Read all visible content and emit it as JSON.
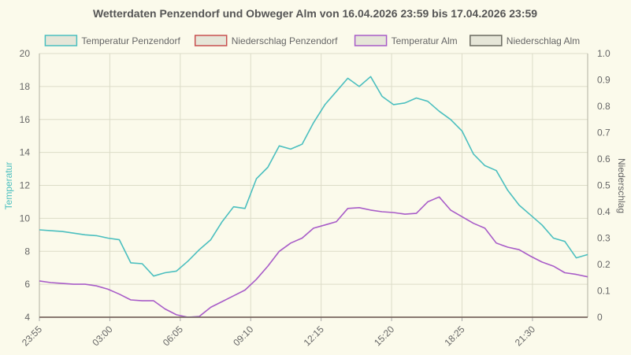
{
  "chart_data": {
    "type": "line",
    "title": "Wetterdaten Penzendorf und Obweger Alm von 16.04.2026 23:59 bis 17.04.2026 23:59",
    "ylabel_left": "Temperatur",
    "ylabel_right": "Niederschlag",
    "ylim_left": [
      4,
      20
    ],
    "ylim_right": [
      0,
      1
    ],
    "yticks_left": [
      "4",
      "6",
      "8",
      "10",
      "12",
      "14",
      "16",
      "18",
      "20"
    ],
    "yticks_right": [
      "0",
      "0.1",
      "0.2",
      "0.3",
      "0.4",
      "0.5",
      "0.6",
      "0.7",
      "0.8",
      "0.9",
      "1.0"
    ],
    "xlim_minutes": [
      0,
      1440
    ],
    "x_ticks": [
      {
        "label": "23:55",
        "minute": 0
      },
      {
        "label": "03:00",
        "minute": 185
      },
      {
        "label": "06:05",
        "minute": 370
      },
      {
        "label": "09:10",
        "minute": 555
      },
      {
        "label": "12:15",
        "minute": 740
      },
      {
        "label": "15:20",
        "minute": 925
      },
      {
        "label": "18:25",
        "minute": 1110
      },
      {
        "label": "21:30",
        "minute": 1295
      }
    ],
    "grid": true,
    "legend_position": "top",
    "series": [
      {
        "name": "Temperatur Penzendorf",
        "axis": "left",
        "color": "#4bbfbf",
        "points": [
          [
            0,
            9.3
          ],
          [
            30,
            9.25
          ],
          [
            60,
            9.2
          ],
          [
            90,
            9.1
          ],
          [
            120,
            9.0
          ],
          [
            150,
            8.95
          ],
          [
            180,
            8.8
          ],
          [
            210,
            8.7
          ],
          [
            240,
            7.3
          ],
          [
            270,
            7.25
          ],
          [
            300,
            6.5
          ],
          [
            330,
            6.7
          ],
          [
            360,
            6.8
          ],
          [
            390,
            7.4
          ],
          [
            420,
            8.1
          ],
          [
            450,
            8.7
          ],
          [
            480,
            9.8
          ],
          [
            510,
            10.7
          ],
          [
            540,
            10.6
          ],
          [
            570,
            12.4
          ],
          [
            600,
            13.1
          ],
          [
            630,
            14.4
          ],
          [
            660,
            14.2
          ],
          [
            690,
            14.5
          ],
          [
            720,
            15.8
          ],
          [
            750,
            16.9
          ],
          [
            780,
            17.7
          ],
          [
            810,
            18.5
          ],
          [
            840,
            18.0
          ],
          [
            870,
            18.6
          ],
          [
            900,
            17.4
          ],
          [
            930,
            16.9
          ],
          [
            960,
            17.0
          ],
          [
            990,
            17.3
          ],
          [
            1020,
            17.1
          ],
          [
            1050,
            16.5
          ],
          [
            1080,
            16.0
          ],
          [
            1110,
            15.3
          ],
          [
            1140,
            13.9
          ],
          [
            1170,
            13.2
          ],
          [
            1200,
            12.9
          ],
          [
            1230,
            11.7
          ],
          [
            1260,
            10.8
          ],
          [
            1290,
            10.2
          ],
          [
            1320,
            9.6
          ],
          [
            1350,
            8.8
          ],
          [
            1380,
            8.6
          ],
          [
            1410,
            7.6
          ],
          [
            1440,
            7.8
          ]
        ]
      },
      {
        "name": "Niederschlag Penzendorf",
        "axis": "right",
        "color": "#c85050",
        "points": [
          [
            0,
            0
          ],
          [
            1440,
            0
          ]
        ]
      },
      {
        "name": "Temperatur Alm",
        "axis": "left",
        "color": "#a85cc8",
        "points": [
          [
            0,
            6.2
          ],
          [
            30,
            6.1
          ],
          [
            60,
            6.05
          ],
          [
            90,
            6.0
          ],
          [
            120,
            6.0
          ],
          [
            150,
            5.9
          ],
          [
            180,
            5.7
          ],
          [
            210,
            5.4
          ],
          [
            240,
            5.05
          ],
          [
            270,
            5.0
          ],
          [
            300,
            5.0
          ],
          [
            330,
            4.5
          ],
          [
            360,
            4.15
          ],
          [
            390,
            4.0
          ],
          [
            420,
            4.05
          ],
          [
            450,
            4.6
          ],
          [
            480,
            4.95
          ],
          [
            510,
            5.3
          ],
          [
            540,
            5.65
          ],
          [
            570,
            6.3
          ],
          [
            600,
            7.1
          ],
          [
            630,
            8.0
          ],
          [
            660,
            8.5
          ],
          [
            690,
            8.8
          ],
          [
            720,
            9.4
          ],
          [
            750,
            9.6
          ],
          [
            780,
            9.8
          ],
          [
            810,
            10.6
          ],
          [
            840,
            10.65
          ],
          [
            870,
            10.5
          ],
          [
            900,
            10.4
          ],
          [
            930,
            10.35
          ],
          [
            960,
            10.25
          ],
          [
            990,
            10.3
          ],
          [
            1020,
            11.0
          ],
          [
            1050,
            11.3
          ],
          [
            1080,
            10.5
          ],
          [
            1110,
            10.1
          ],
          [
            1140,
            9.7
          ],
          [
            1170,
            9.4
          ],
          [
            1200,
            8.5
          ],
          [
            1230,
            8.25
          ],
          [
            1260,
            8.1
          ],
          [
            1290,
            7.7
          ],
          [
            1320,
            7.35
          ],
          [
            1350,
            7.1
          ],
          [
            1380,
            6.7
          ],
          [
            1410,
            6.6
          ],
          [
            1440,
            6.45
          ]
        ]
      },
      {
        "name": "Niederschlag Alm",
        "axis": "right",
        "color": "#6a6a60",
        "points": [
          [
            0,
            0
          ],
          [
            1440,
            0
          ]
        ]
      }
    ]
  }
}
